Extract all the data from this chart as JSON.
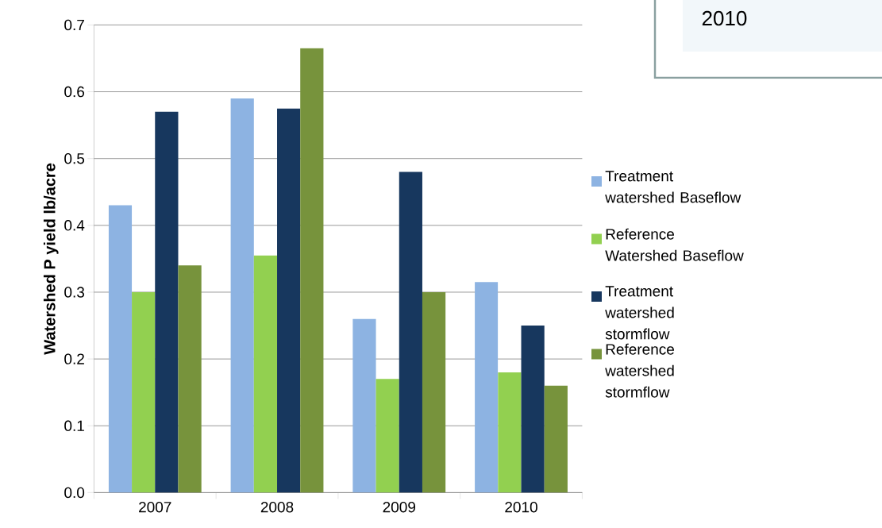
{
  "chart_data": {
    "type": "bar",
    "ylabel": "Watershed P yield lb/acre",
    "categories": [
      "2007",
      "2008",
      "2009",
      "2010"
    ],
    "series": [
      {
        "name": "Treatment watershed Baseflow",
        "color": "#8db3e2",
        "values": [
          0.43,
          0.59,
          0.26,
          0.315
        ]
      },
      {
        "name": "Reference Watershed Baseflow",
        "color": "#92d050",
        "values": [
          0.3,
          0.355,
          0.17,
          0.18
        ]
      },
      {
        "name": "Treatment watershed stormflow",
        "color": "#17375e",
        "values": [
          0.57,
          0.575,
          0.48,
          0.25
        ]
      },
      {
        "name": "Reference watershed stormflow",
        "color": "#77933c",
        "values": [
          0.34,
          0.665,
          0.3,
          0.16
        ]
      }
    ],
    "ylim": [
      0,
      0.7
    ],
    "yticks": [
      {
        "value": 0,
        "label": "0.0"
      },
      0.1,
      0.2,
      0.3,
      0.4,
      0.5,
      0.6,
      0.7
    ],
    "grid": "y",
    "legend": "right",
    "annotations": [
      "2010"
    ]
  }
}
